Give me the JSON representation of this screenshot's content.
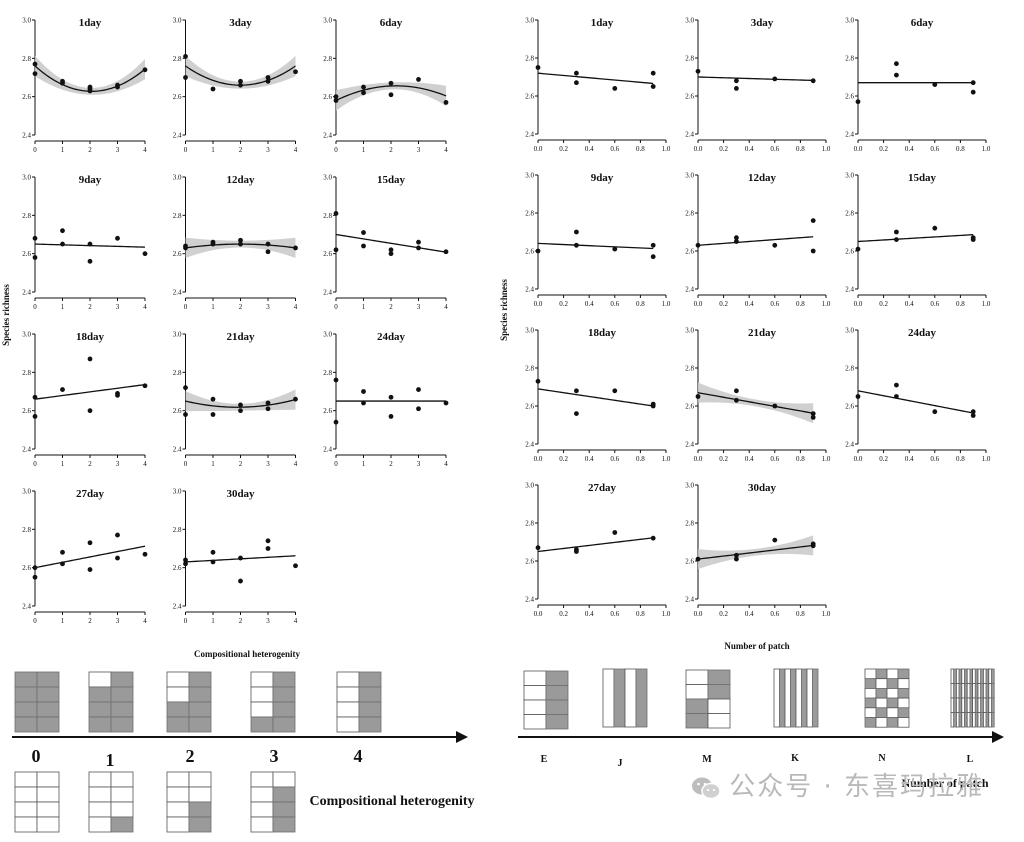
{
  "chart_data": [
    {
      "id": "left",
      "type": "scatter",
      "xlabel": "Compositional heterogenity",
      "ylabel": "Species richness",
      "xlim": [
        0,
        4
      ],
      "ylim": [
        2.4,
        3.0
      ],
      "xticks": [
        "0",
        "1",
        "2",
        "3",
        "4"
      ],
      "yticks": [
        "2.4",
        "2.6",
        "2.8",
        "3.0"
      ],
      "panels": [
        {
          "title": "1day",
          "fit": "quadratic",
          "ci": true,
          "coef": [
            2.76,
            -0.128,
            0.031
          ],
          "points": [
            [
              0,
              2.77
            ],
            [
              0,
              2.72
            ],
            [
              1,
              2.68
            ],
            [
              1,
              2.67
            ],
            [
              2,
              2.65
            ],
            [
              2,
              2.64
            ],
            [
              2,
              2.63
            ],
            [
              3,
              2.66
            ],
            [
              3,
              2.65
            ],
            [
              4,
              2.74
            ]
          ]
        },
        {
          "title": "3day",
          "fit": "quadratic",
          "ci": true,
          "coef": [
            2.76,
            -0.1,
            0.025
          ],
          "points": [
            [
              0,
              2.81
            ],
            [
              0,
              2.7
            ],
            [
              1,
              2.64
            ],
            [
              2,
              2.68
            ],
            [
              2,
              2.66
            ],
            [
              3,
              2.7
            ],
            [
              3,
              2.68
            ],
            [
              4,
              2.73
            ]
          ]
        },
        {
          "title": "6day",
          "fit": "quadratic",
          "ci": true,
          "coef": [
            2.58,
            0.07,
            -0.016
          ],
          "points": [
            [
              0,
              2.6
            ],
            [
              0,
              2.58
            ],
            [
              1,
              2.62
            ],
            [
              1,
              2.65
            ],
            [
              2,
              2.67
            ],
            [
              2,
              2.61
            ],
            [
              3,
              2.69
            ],
            [
              4,
              2.57
            ]
          ]
        },
        {
          "title": "9day",
          "fit": "linear",
          "ci": false,
          "coef": [
            2.65,
            -0.004
          ],
          "points": [
            [
              0,
              2.68
            ],
            [
              0,
              2.58
            ],
            [
              1,
              2.72
            ],
            [
              1,
              2.65
            ],
            [
              2,
              2.65
            ],
            [
              2,
              2.56
            ],
            [
              3,
              2.68
            ],
            [
              4,
              2.6
            ]
          ]
        },
        {
          "title": "12day",
          "fit": "quadratic",
          "ci": true,
          "coef": [
            2.63,
            0.02,
            -0.005
          ],
          "points": [
            [
              0,
              2.63
            ],
            [
              0,
              2.64
            ],
            [
              1,
              2.65
            ],
            [
              1,
              2.66
            ],
            [
              2,
              2.67
            ],
            [
              2,
              2.65
            ],
            [
              3,
              2.65
            ],
            [
              3,
              2.61
            ],
            [
              4,
              2.63
            ]
          ]
        },
        {
          "title": "15day",
          "fit": "linear",
          "ci": false,
          "coef": [
            2.7,
            -0.023
          ],
          "points": [
            [
              0,
              2.81
            ],
            [
              0,
              2.62
            ],
            [
              1,
              2.71
            ],
            [
              1,
              2.64
            ],
            [
              2,
              2.62
            ],
            [
              2,
              2.6
            ],
            [
              3,
              2.66
            ],
            [
              3,
              2.63
            ],
            [
              4,
              2.61
            ]
          ]
        },
        {
          "title": "18day",
          "fit": "linear",
          "ci": false,
          "coef": [
            2.66,
            0.019
          ],
          "points": [
            [
              0,
              2.67
            ],
            [
              0,
              2.57
            ],
            [
              1,
              2.71
            ],
            [
              2,
              2.87
            ],
            [
              2,
              2.6
            ],
            [
              3,
              2.69
            ],
            [
              3,
              2.68
            ],
            [
              4,
              2.73
            ]
          ]
        },
        {
          "title": "21day",
          "fit": "quadratic",
          "ci": true,
          "coef": [
            2.65,
            -0.034,
            0.009
          ],
          "points": [
            [
              0,
              2.72
            ],
            [
              0,
              2.58
            ],
            [
              1,
              2.66
            ],
            [
              1,
              2.58
            ],
            [
              2,
              2.63
            ],
            [
              2,
              2.6
            ],
            [
              3,
              2.64
            ],
            [
              3,
              2.61
            ],
            [
              4,
              2.66
            ]
          ]
        },
        {
          "title": "24day",
          "fit": "linear",
          "ci": false,
          "coef": [
            2.65,
            0.0
          ],
          "points": [
            [
              0,
              2.76
            ],
            [
              0,
              2.54
            ],
            [
              1,
              2.7
            ],
            [
              1,
              2.64
            ],
            [
              2,
              2.67
            ],
            [
              2,
              2.57
            ],
            [
              3,
              2.71
            ],
            [
              3,
              2.61
            ],
            [
              4,
              2.64
            ]
          ]
        },
        {
          "title": "27day",
          "fit": "linear",
          "ci": false,
          "coef": [
            2.6,
            0.028
          ],
          "points": [
            [
              0,
              2.6
            ],
            [
              0,
              2.55
            ],
            [
              1,
              2.68
            ],
            [
              1,
              2.62
            ],
            [
              2,
              2.73
            ],
            [
              2,
              2.59
            ],
            [
              3,
              2.77
            ],
            [
              3,
              2.65
            ],
            [
              4,
              2.67
            ]
          ]
        },
        {
          "title": "30day",
          "fit": "linear",
          "ci": false,
          "coef": [
            2.63,
            0.008
          ],
          "points": [
            [
              0,
              2.64
            ],
            [
              0,
              2.62
            ],
            [
              1,
              2.68
            ],
            [
              1,
              2.63
            ],
            [
              2,
              2.65
            ],
            [
              2,
              2.53
            ],
            [
              3,
              2.74
            ],
            [
              3,
              2.7
            ],
            [
              4,
              2.61
            ]
          ]
        }
      ]
    },
    {
      "id": "right",
      "type": "scatter",
      "xlabel": "Number of patch",
      "ylabel": "Species richness",
      "xlim": [
        0,
        1
      ],
      "ylim": [
        2.4,
        3.0
      ],
      "xticks": [
        "0.0",
        "0.2",
        "0.4",
        "0.6",
        "0.8",
        "1.0"
      ],
      "yticks": [
        "2.4",
        "2.6",
        "2.8",
        "3.0"
      ],
      "panels": [
        {
          "title": "1day",
          "fit": "linear",
          "ci": false,
          "coef": [
            2.72,
            -0.06
          ],
          "points": [
            [
              0,
              2.75
            ],
            [
              0.3,
              2.72
            ],
            [
              0.3,
              2.67
            ],
            [
              0.6,
              2.64
            ],
            [
              0.9,
              2.72
            ],
            [
              0.9,
              2.65
            ]
          ]
        },
        {
          "title": "3day",
          "fit": "linear",
          "ci": false,
          "coef": [
            2.7,
            -0.02
          ],
          "points": [
            [
              0,
              2.73
            ],
            [
              0.3,
              2.68
            ],
            [
              0.3,
              2.64
            ],
            [
              0.6,
              2.69
            ],
            [
              0.9,
              2.68
            ]
          ]
        },
        {
          "title": "6day",
          "fit": "linear",
          "ci": false,
          "coef": [
            2.67,
            0.0
          ],
          "points": [
            [
              0,
              2.57
            ],
            [
              0.3,
              2.77
            ],
            [
              0.3,
              2.71
            ],
            [
              0.6,
              2.66
            ],
            [
              0.9,
              2.67
            ],
            [
              0.9,
              2.62
            ]
          ]
        },
        {
          "title": "9day",
          "fit": "linear",
          "ci": false,
          "coef": [
            2.64,
            -0.03
          ],
          "points": [
            [
              0,
              2.6
            ],
            [
              0.3,
              2.7
            ],
            [
              0.3,
              2.63
            ],
            [
              0.6,
              2.61
            ],
            [
              0.9,
              2.63
            ],
            [
              0.9,
              2.57
            ]
          ]
        },
        {
          "title": "12day",
          "fit": "linear",
          "ci": false,
          "coef": [
            2.63,
            0.05
          ],
          "points": [
            [
              0,
              2.63
            ],
            [
              0.3,
              2.67
            ],
            [
              0.3,
              2.65
            ],
            [
              0.6,
              2.63
            ],
            [
              0.9,
              2.76
            ],
            [
              0.9,
              2.6
            ]
          ]
        },
        {
          "title": "15day",
          "fit": "linear",
          "ci": false,
          "coef": [
            2.65,
            0.04
          ],
          "points": [
            [
              0,
              2.61
            ],
            [
              0.3,
              2.7
            ],
            [
              0.3,
              2.66
            ],
            [
              0.6,
              2.72
            ],
            [
              0.9,
              2.67
            ],
            [
              0.9,
              2.66
            ]
          ]
        },
        {
          "title": "18day",
          "fit": "linear",
          "ci": false,
          "coef": [
            2.69,
            -0.1
          ],
          "points": [
            [
              0,
              2.73
            ],
            [
              0.3,
              2.68
            ],
            [
              0.3,
              2.56
            ],
            [
              0.6,
              2.68
            ],
            [
              0.9,
              2.61
            ],
            [
              0.9,
              2.6
            ]
          ]
        },
        {
          "title": "21day",
          "fit": "linear",
          "ci": true,
          "coef": [
            2.67,
            -0.12
          ],
          "points": [
            [
              0,
              2.65
            ],
            [
              0.3,
              2.68
            ],
            [
              0.3,
              2.63
            ],
            [
              0.6,
              2.6
            ],
            [
              0.9,
              2.56
            ],
            [
              0.9,
              2.54
            ]
          ]
        },
        {
          "title": "24day",
          "fit": "linear",
          "ci": false,
          "coef": [
            2.68,
            -0.13
          ],
          "points": [
            [
              0,
              2.65
            ],
            [
              0.3,
              2.71
            ],
            [
              0.3,
              2.65
            ],
            [
              0.6,
              2.57
            ],
            [
              0.9,
              2.57
            ],
            [
              0.9,
              2.55
            ]
          ]
        },
        {
          "title": "27day",
          "fit": "linear",
          "ci": false,
          "coef": [
            2.65,
            0.08
          ],
          "points": [
            [
              0,
              2.67
            ],
            [
              0.3,
              2.66
            ],
            [
              0.3,
              2.65
            ],
            [
              0.6,
              2.75
            ],
            [
              0.9,
              2.72
            ]
          ]
        },
        {
          "title": "30day",
          "fit": "linear",
          "ci": true,
          "coef": [
            2.61,
            0.08
          ],
          "points": [
            [
              0,
              2.61
            ],
            [
              0.3,
              2.63
            ],
            [
              0.3,
              2.61
            ],
            [
              0.6,
              2.71
            ],
            [
              0.9,
              2.69
            ],
            [
              0.9,
              2.68
            ]
          ]
        }
      ]
    }
  ],
  "left_scale": {
    "labels": [
      "0",
      "1",
      "2",
      "3",
      "4"
    ],
    "caption": "Compositional heterogenity"
  },
  "right_scale": {
    "labels": [
      "E",
      "J",
      "M",
      "K",
      "N",
      "L"
    ],
    "caption": "Number of patch"
  },
  "watermark": "公众号 · 东喜玛拉雅",
  "colors": {
    "points": "#111111",
    "fit": "#111111",
    "ci_band": "#c8c8c8",
    "patch_fill": "#9a9a9a"
  }
}
